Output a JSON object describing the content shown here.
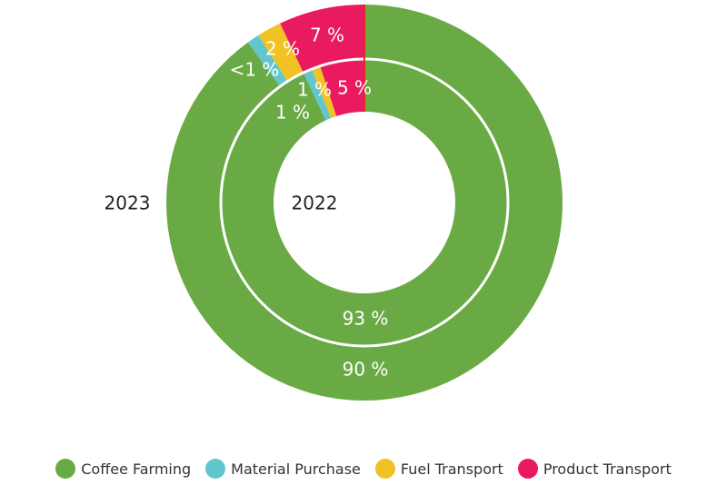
{
  "chart_data": {
    "type": "pie",
    "variant": "nested-donut",
    "categories": [
      "Coffee Farming",
      "Material Purchase",
      "Fuel Transport",
      "Product Transport"
    ],
    "colors": [
      "#6aaa44",
      "#62c6cf",
      "#f0c224",
      "#ea1a5e"
    ],
    "series": [
      {
        "name": "2023",
        "ring": "outer",
        "values": [
          90,
          1,
          2,
          7
        ],
        "labels": [
          "90 %",
          "<1 %",
          "2 %",
          "7 %"
        ]
      },
      {
        "name": "2022",
        "ring": "inner",
        "values": [
          93,
          1,
          1,
          5
        ],
        "labels": [
          "93 %",
          "1 %",
          "1 %",
          "5 %"
        ]
      }
    ],
    "legend_position": "bottom"
  }
}
